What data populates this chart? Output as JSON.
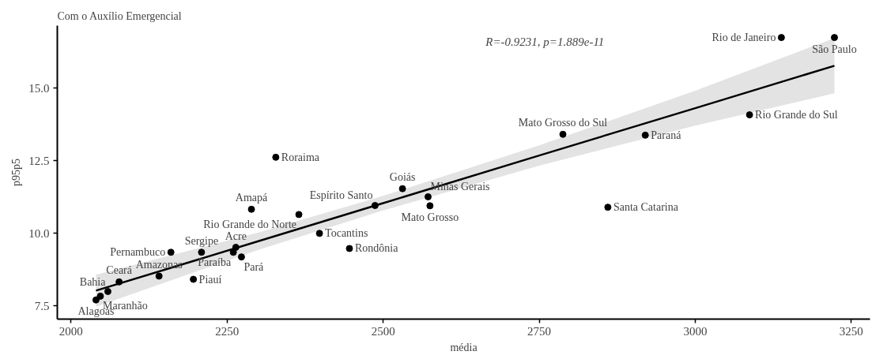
{
  "chart_data": {
    "type": "scatter",
    "title": "Com o Auxílio Emergencial",
    "xlabel": "média",
    "ylabel": "p95p5",
    "xlim": [
      1978,
      3280
    ],
    "ylim": [
      7.05,
      17.15
    ],
    "xticks": [
      2000,
      2250,
      2500,
      2750,
      3000,
      3250
    ],
    "yticks": [
      7.5,
      {
        "value": 10,
        "label": "10.0"
      },
      12.5,
      {
        "value": 15,
        "label": "15.0"
      }
    ],
    "grid": false,
    "series": [
      {
        "marker": "circle",
        "color": "#000000",
        "x": [
          2040,
          2047,
          2059,
          2077,
          2141,
          2160,
          2196,
          2209,
          2264,
          2260,
          2273,
          2398,
          2446,
          2328,
          2289,
          2365,
          2487,
          2531,
          2572,
          2575,
          2788,
          2920,
          2860,
          3087,
          3138,
          3223
        ],
        "values": [
          7.71,
          7.84,
          8.0,
          8.33,
          8.53,
          9.35,
          8.42,
          9.35,
          9.52,
          9.35,
          9.19,
          10.0,
          9.48,
          12.62,
          10.83,
          10.65,
          10.96,
          11.54,
          11.26,
          10.95,
          13.41,
          13.38,
          10.9,
          14.08,
          16.74,
          16.74
        ]
      },
      {
        "type": "line",
        "color": "#000000",
        "line_style": "solid",
        "x": [
          2040,
          2300,
          2500,
          2750,
          3000,
          3223
        ],
        "values": [
          8.03,
          9.73,
          11.04,
          12.68,
          14.31,
          15.77
        ],
        "lower": [
          7.48,
          9.43,
          10.79,
          12.33,
          13.71,
          14.82
        ],
        "upper": [
          8.58,
          10.03,
          11.29,
          13.03,
          14.91,
          16.72
        ]
      }
    ],
    "annotations": [
      "R=-0.9231, p=1.889e-11",
      {
        "text": "Alagoas",
        "x": 2040,
        "y": 7.71
      },
      {
        "text": "Maranhão",
        "x": 2047,
        "y": 7.84
      },
      {
        "text": "Bahia",
        "x": 2059,
        "y": 8.0
      },
      {
        "text": "Ceará",
        "x": 2077,
        "y": 8.33
      },
      {
        "text": "Amazonas",
        "x": 2141,
        "y": 8.53
      },
      {
        "text": "Pernambuco",
        "x": 2160,
        "y": 9.35
      },
      {
        "text": "Piauí",
        "x": 2196,
        "y": 8.42
      },
      {
        "text": "Sergipe",
        "x": 2209,
        "y": 9.35
      },
      {
        "text": "Acre",
        "x": 2264,
        "y": 9.52
      },
      {
        "text": "Paraíba",
        "x": 2260,
        "y": 9.35
      },
      {
        "text": "Pará",
        "x": 2273,
        "y": 9.19
      },
      {
        "text": "Tocantins",
        "x": 2398,
        "y": 10.0
      },
      {
        "text": "Rondônia",
        "x": 2446,
        "y": 9.48
      },
      {
        "text": "Roraima",
        "x": 2328,
        "y": 12.62
      },
      {
        "text": "Amapá",
        "x": 2289,
        "y": 10.83
      },
      {
        "text": "Rio Grande do Norte",
        "x": 2365,
        "y": 10.65
      },
      {
        "text": "Espírito Santo",
        "x": 2487,
        "y": 10.96
      },
      {
        "text": "Goiás",
        "x": 2531,
        "y": 11.54
      },
      {
        "text": "Minas Gerais",
        "x": 2572,
        "y": 11.26
      },
      {
        "text": "Mato Grosso",
        "x": 2575,
        "y": 10.95
      },
      {
        "text": "Mato Grosso do Sul",
        "x": 2788,
        "y": 13.41
      },
      {
        "text": "Paraná",
        "x": 2920,
        "y": 13.38
      },
      {
        "text": "Santa Catarina",
        "x": 2860,
        "y": 10.9
      },
      {
        "text": "Rio Grande do Sul",
        "x": 3087,
        "y": 14.08
      },
      {
        "text": "Rio de Janeiro",
        "x": 3138,
        "y": 16.74
      },
      {
        "text": "São Paulo",
        "x": 3223,
        "y": 16.74
      }
    ]
  }
}
